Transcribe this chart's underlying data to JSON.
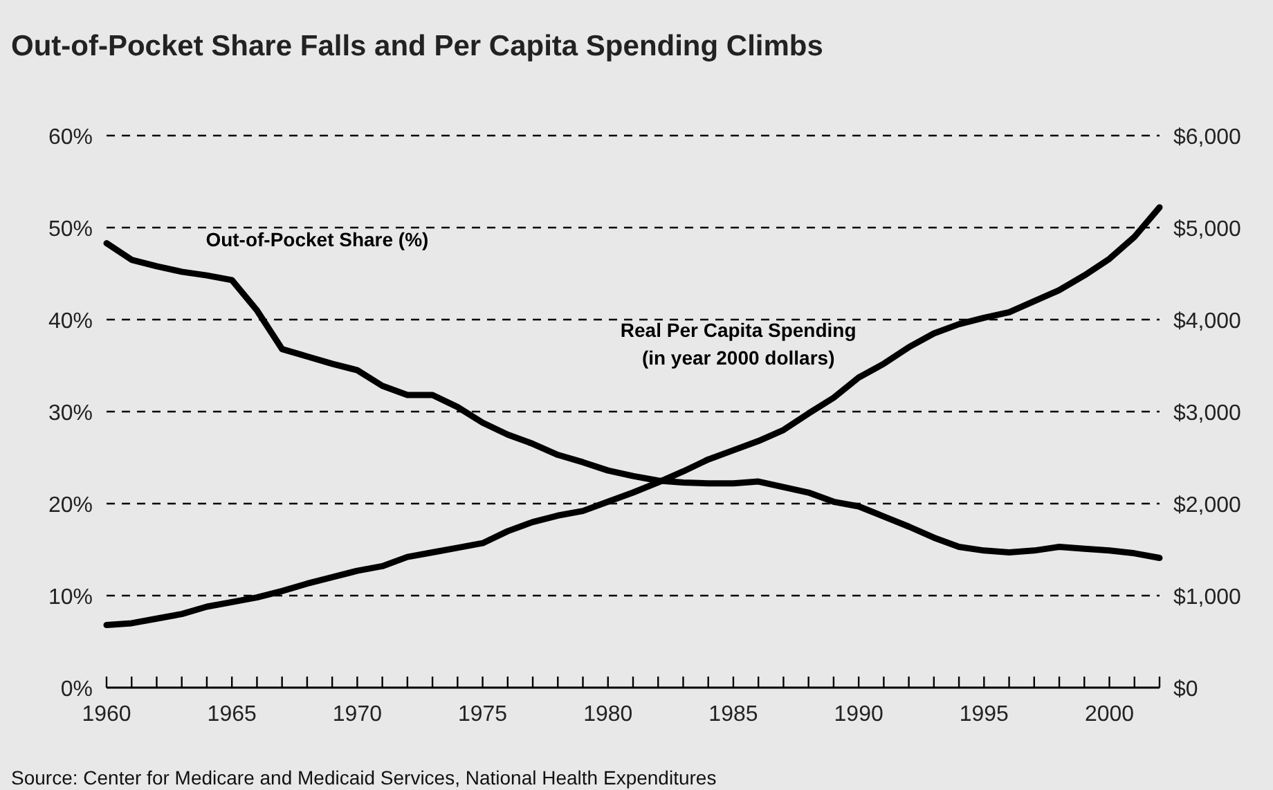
{
  "chart_data": {
    "type": "line",
    "title": "Out-of-Pocket Share Falls and Per Capita Spending Climbs",
    "x": [
      1960,
      1961,
      1962,
      1963,
      1964,
      1965,
      1966,
      1967,
      1968,
      1969,
      1970,
      1971,
      1972,
      1973,
      1974,
      1975,
      1976,
      1977,
      1978,
      1979,
      1980,
      1981,
      1982,
      1983,
      1984,
      1985,
      1986,
      1987,
      1988,
      1989,
      1990,
      1991,
      1992,
      1993,
      1994,
      1995,
      1996,
      1997,
      1998,
      1999,
      2000,
      2001,
      2002
    ],
    "series": [
      {
        "name": "Out-of-Pocket Share (%)",
        "color": "#000000",
        "values": [
          48.3,
          46.5,
          45.8,
          45.2,
          44.8,
          44.3,
          41,
          36.8,
          36,
          35.2,
          34.5,
          32.8,
          31.8,
          31.8,
          30.5,
          28.8,
          27.5,
          26.5,
          25.3,
          24.5,
          23.6,
          23,
          22.5,
          22.3,
          22.2,
          22.2,
          22.4,
          21.8,
          21.2,
          20.2,
          19.7,
          18.6,
          17.5,
          16.3,
          15.3,
          14.9,
          14.7,
          14.9,
          15.3,
          15.1,
          14.9,
          14.6,
          14.1
        ]
      },
      {
        "name": "Real Per Capita Spending\n(in year 2000 dollars)",
        "color": "#000000",
        "axis": "y2",
        "values": [
          680,
          700,
          750,
          800,
          880,
          930,
          980,
          1050,
          1130,
          1200,
          1270,
          1320,
          1420,
          1470,
          1520,
          1570,
          1700,
          1800,
          1870,
          1920,
          2020,
          2120,
          2230,
          2350,
          2480,
          2580,
          2680,
          2800,
          2980,
          3150,
          3370,
          3520,
          3700,
          3850,
          3950,
          4020,
          4080,
          4200,
          4320,
          4480,
          4660,
          4900,
          5220
        ]
      }
    ],
    "xlim": [
      1960,
      2002
    ],
    "xticks": [
      1960,
      {
        "value": 1961,
        "label": null
      },
      {
        "value": 1962,
        "label": null
      },
      {
        "value": 1963,
        "label": null
      },
      {
        "value": 1964,
        "label": null
      },
      1965,
      {
        "value": 1966,
        "label": null
      },
      {
        "value": 1967,
        "label": null
      },
      {
        "value": 1968,
        "label": null
      },
      {
        "value": 1969,
        "label": null
      },
      1970,
      {
        "value": 1971,
        "label": null
      },
      {
        "value": 1972,
        "label": null
      },
      {
        "value": 1973,
        "label": null
      },
      {
        "value": 1974,
        "label": null
      },
      1975,
      {
        "value": 1976,
        "label": null
      },
      {
        "value": 1977,
        "label": null
      },
      {
        "value": 1978,
        "label": null
      },
      {
        "value": 1979,
        "label": null
      },
      1980,
      {
        "value": 1981,
        "label": null
      },
      {
        "value": 1982,
        "label": null
      },
      {
        "value": 1983,
        "label": null
      },
      {
        "value": 1984,
        "label": null
      },
      1985,
      {
        "value": 1986,
        "label": null
      },
      {
        "value": 1987,
        "label": null
      },
      {
        "value": 1988,
        "label": null
      },
      {
        "value": 1989,
        "label": null
      },
      1990,
      {
        "value": 1991,
        "label": null
      },
      {
        "value": 1992,
        "label": null
      },
      {
        "value": 1993,
        "label": null
      },
      {
        "value": 1994,
        "label": null
      },
      1995,
      {
        "value": 1996,
        "label": null
      },
      {
        "value": 1997,
        "label": null
      },
      {
        "value": 1998,
        "label": null
      },
      {
        "value": 1999,
        "label": null
      },
      2000,
      {
        "value": 2001,
        "label": null
      },
      {
        "value": 2002,
        "label": null
      }
    ],
    "ylim": [
      0,
      60
    ],
    "yticks": [
      {
        "value": 0,
        "label": "0%"
      },
      {
        "value": 10,
        "label": "10%"
      },
      {
        "value": 20,
        "label": "20%"
      },
      {
        "value": 30,
        "label": "30%"
      },
      {
        "value": 40,
        "label": "40%"
      },
      {
        "value": 50,
        "label": "50%"
      },
      {
        "value": 60,
        "label": "60%"
      }
    ],
    "y2lim": [
      0,
      6000
    ],
    "y2ticks": [
      {
        "value": 0,
        "label": "$0"
      },
      {
        "value": 1000,
        "label": "$1,000"
      },
      {
        "value": 2000,
        "label": "$2,000"
      },
      {
        "value": 3000,
        "label": "$3,000"
      },
      {
        "value": 4000,
        "label": "$4,000"
      },
      {
        "value": 5000,
        "label": "$5,000"
      },
      {
        "value": 6000,
        "label": "$6,000"
      }
    ],
    "grid": "y",
    "line_style": "solid",
    "marker": "none",
    "annotations": [
      "Source: Center for Medicare and Medicaid Services, National Health Expenditures"
    ]
  }
}
